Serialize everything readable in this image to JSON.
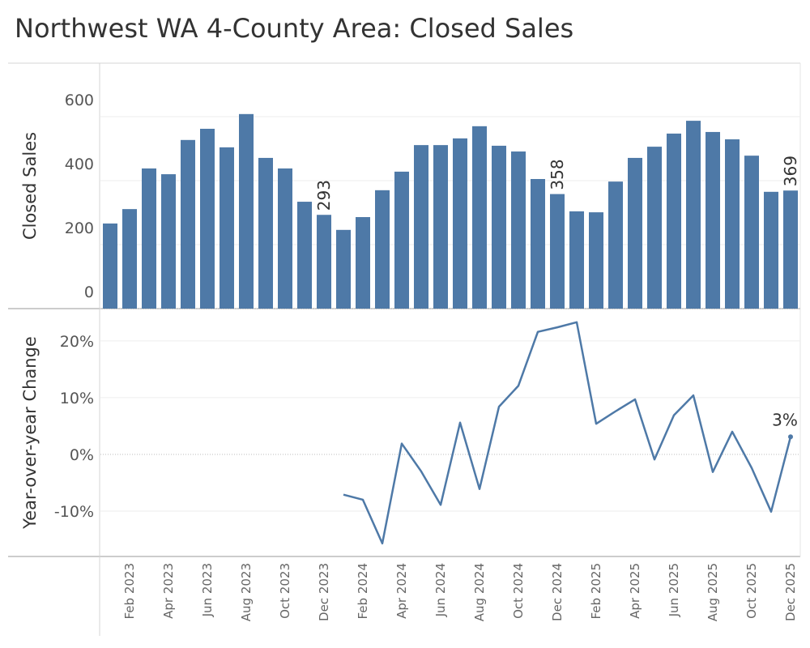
{
  "chart_data": {
    "type": "combo",
    "title": "Northwest WA 4-County Area: Closed Sales",
    "categories": [
      null,
      "Feb 2023",
      null,
      "Apr 2023",
      null,
      "Jun 2023",
      null,
      "Aug 2023",
      null,
      "Oct 2023",
      null,
      "Dec 2023",
      null,
      "Feb 2024",
      null,
      "Apr 2024",
      null,
      "Jun 2024",
      null,
      "Aug 2024",
      null,
      "Oct 2024",
      null,
      "Dec 2024",
      null,
      "Feb 2025",
      null,
      "Apr 2025",
      null,
      "Jun 2025",
      null,
      "Aug 2025",
      null,
      "Oct 2025",
      null,
      "Dec 2025"
    ],
    "panes": [
      {
        "type": "bar",
        "ylabel": "Closed Sales",
        "ylim": [
          0,
          767
        ],
        "yticks": [
          0,
          200,
          400,
          600
        ],
        "grid": true,
        "series": [
          {
            "name": "Closed Sales",
            "color": "#4e79a7",
            "values": [
              266,
              311,
              438,
              420,
              527,
              562,
              504,
              608,
              471,
              438,
              334,
              293,
              246,
              286,
              370,
              428,
              511,
              511,
              532,
              570,
              509,
              491,
              405,
              358,
              304,
              301,
              397,
              471,
              506,
              547,
              587,
              552,
              529,
              478,
              365,
              369
            ],
            "value_labels": [
              null,
              null,
              null,
              null,
              null,
              null,
              null,
              null,
              null,
              null,
              null,
              "293",
              null,
              null,
              null,
              null,
              null,
              null,
              null,
              null,
              null,
              null,
              null,
              "358",
              null,
              null,
              null,
              null,
              null,
              null,
              null,
              null,
              null,
              null,
              null,
              "369"
            ]
          }
        ]
      },
      {
        "type": "line",
        "ylabel": "Year-over-year Change",
        "ylim": [
          -18,
          25.7
        ],
        "yticks": [
          {
            "value": -10,
            "label": "-10%"
          },
          {
            "value": 0,
            "label": "0%"
          },
          {
            "value": 10,
            "label": "10%"
          },
          {
            "value": 20,
            "label": "20%"
          }
        ],
        "grid": true,
        "series": [
          {
            "name": "Year-over-year Change",
            "color": "#4e79a7",
            "values": [
              null,
              null,
              null,
              null,
              null,
              null,
              null,
              null,
              null,
              null,
              null,
              null,
              -7.1,
              -8.0,
              -15.7,
              1.9,
              -3.0,
              -8.9,
              5.6,
              -6.1,
              8.4,
              12.1,
              21.6,
              22.4,
              23.3,
              5.4,
              7.6,
              9.7,
              -0.9,
              6.9,
              10.4,
              -3.1,
              4.0,
              -2.4,
              -10.1,
              3.1
            ],
            "value_labels": [
              null,
              null,
              null,
              null,
              null,
              null,
              null,
              null,
              null,
              null,
              null,
              null,
              null,
              null,
              null,
              null,
              null,
              null,
              null,
              null,
              null,
              null,
              null,
              null,
              null,
              null,
              null,
              null,
              null,
              null,
              null,
              null,
              null,
              null,
              null,
              "3%"
            ]
          }
        ]
      }
    ]
  }
}
